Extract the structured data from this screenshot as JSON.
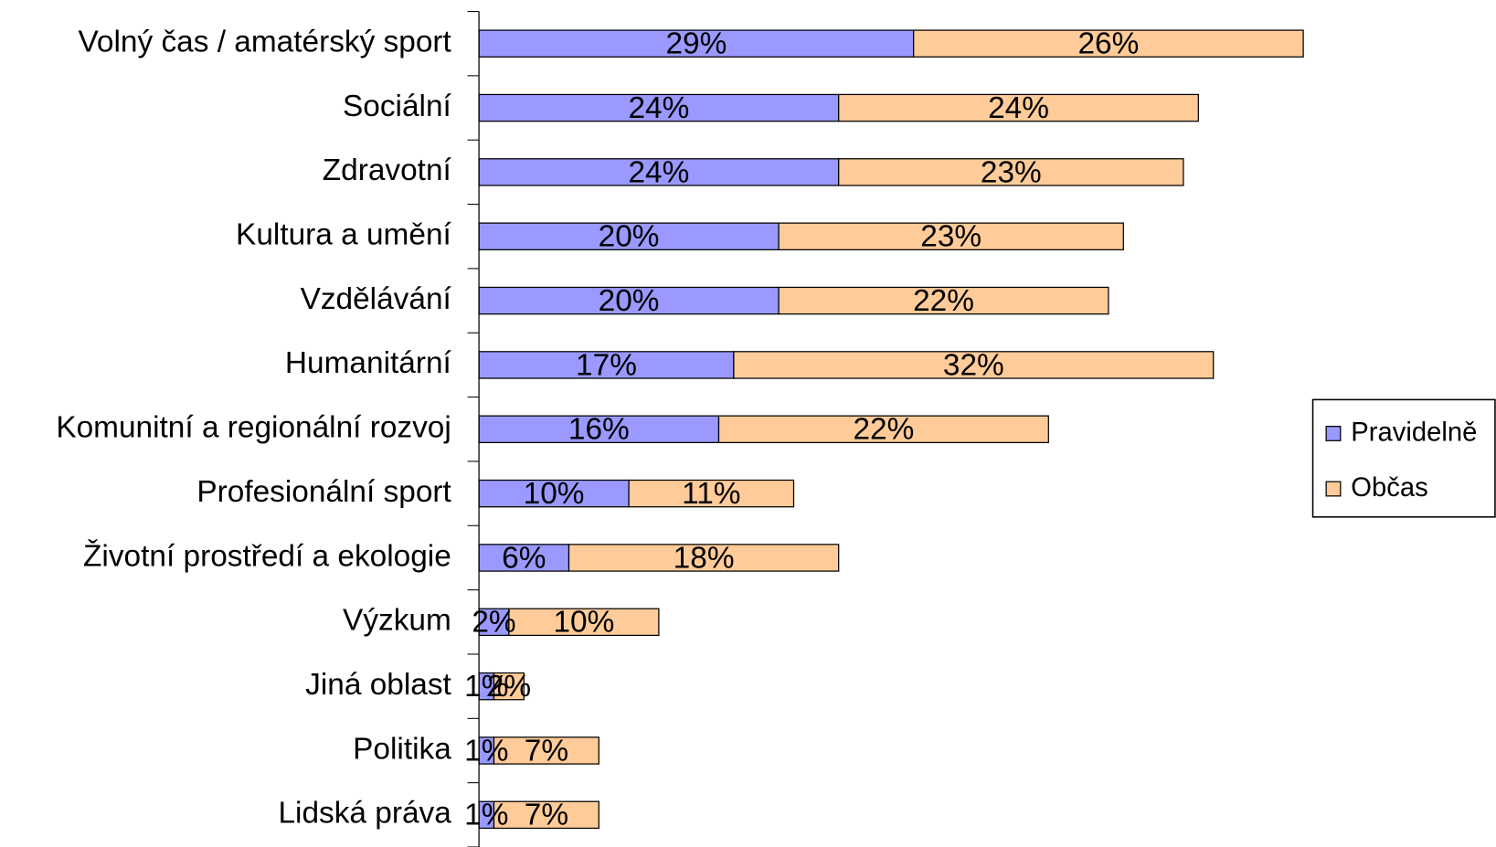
{
  "chart_data": {
    "type": "stacked_bar_horizontal",
    "categories": [
      "Volný čas / amatérský sport",
      "Sociální",
      "Zdravotní",
      "Kultura a umění",
      "Vzdělávání",
      "Humanitární",
      "Komunitní a regionální rozvoj",
      "Profesionální sport",
      "Životní prostředí a ekologie",
      "Výzkum",
      "Jiná oblast",
      "Politika",
      "Lidská práva"
    ],
    "series": [
      {
        "name": "Pravidelně",
        "color": "#9999ff",
        "values": [
          29,
          24,
          24,
          20,
          20,
          17,
          16,
          10,
          6,
          2,
          1,
          1,
          1
        ],
        "value_labels": [
          "29%",
          "24%",
          "24%",
          "20%",
          "20%",
          "17%",
          "16%",
          "10%",
          "6%",
          "2%",
          "1%",
          "1%",
          "1%"
        ]
      },
      {
        "name": "Občas",
        "color": "#ffcc99",
        "values": [
          26,
          24,
          23,
          23,
          22,
          32,
          22,
          11,
          18,
          10,
          2,
          7,
          7
        ],
        "value_labels": [
          "26%",
          "24%",
          "23%",
          "23%",
          "22%",
          "32%",
          "22%",
          "11%",
          "18%",
          "10%",
          "2%",
          "7%",
          "7%"
        ]
      }
    ],
    "legend": "right"
  }
}
